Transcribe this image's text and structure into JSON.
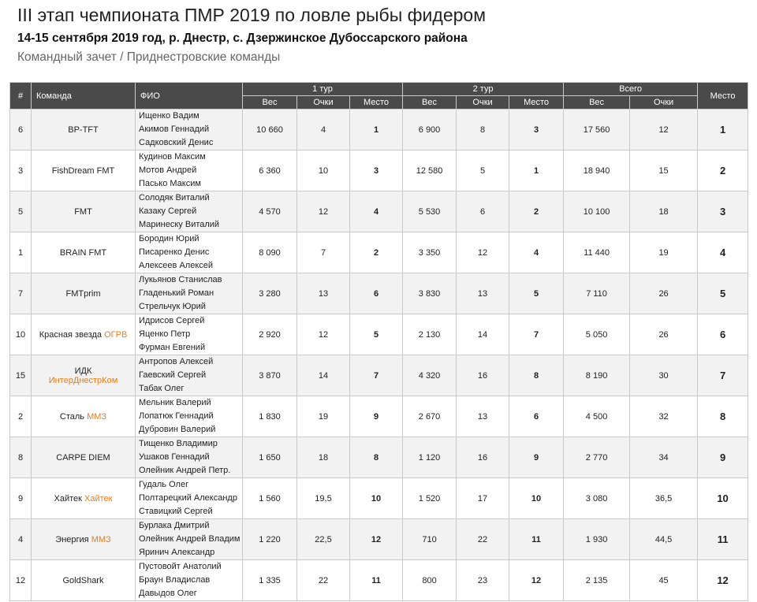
{
  "header": {
    "title": "III этап чемпионата ПМР 2019 по ловле рыбы фидером",
    "subtitle": "14-15 сентября 2019 год, р. Днестр, с. Дзержинское Дубоссарского района",
    "caption": "Командный зачет / Приднестровские команды"
  },
  "columns": {
    "num": "#",
    "team": "Команда",
    "fio": "ФИО",
    "round1": "1 тур",
    "round2": "2 тур",
    "total": "Всего",
    "place": "Место",
    "weight": "Вес",
    "points": "Очки",
    "r_place": "Место"
  },
  "colors": {
    "header_bg": "#4a4a4a",
    "city": "#e67e22",
    "row_alt": "#f2f2f2"
  },
  "rows": [
    {
      "num": "6",
      "team": "BP-TFT",
      "city": "",
      "members": [
        "Ищенко Вадим",
        "Акимов Геннадий",
        "Садковский Денис"
      ],
      "r1_weight": "10 660",
      "r1_points": "4",
      "r1_place": "1",
      "r2_weight": "6 900",
      "r2_points": "8",
      "r2_place": "3",
      "total_weight": "17 560",
      "total_points": "12",
      "place": "1"
    },
    {
      "num": "3",
      "team": "FishDream FMT",
      "city": "",
      "members": [
        "Кудинов Максим",
        "Мотов Андрей",
        "Пасько Максим"
      ],
      "r1_weight": "6 360",
      "r1_points": "10",
      "r1_place": "3",
      "r2_weight": "12 580",
      "r2_points": "5",
      "r2_place": "1",
      "total_weight": "18 940",
      "total_points": "15",
      "place": "2"
    },
    {
      "num": "5",
      "team": "FMT",
      "city": "",
      "members": [
        "Солодяк Виталий",
        "Казаку Сергей",
        "Маринеску Виталий"
      ],
      "r1_weight": "4 570",
      "r1_points": "12",
      "r1_place": "4",
      "r2_weight": "5 530",
      "r2_points": "6",
      "r2_place": "2",
      "total_weight": "10 100",
      "total_points": "18",
      "place": "3"
    },
    {
      "num": "1",
      "team": "BRAIN FMT",
      "city": "",
      "members": [
        "Бородин Юрий",
        "Писаренко Денис",
        "Алексеев Алексей"
      ],
      "r1_weight": "8 090",
      "r1_points": "7",
      "r1_place": "2",
      "r2_weight": "3 350",
      "r2_points": "12",
      "r2_place": "4",
      "total_weight": "11 440",
      "total_points": "19",
      "place": "4"
    },
    {
      "num": "7",
      "team": "FMTprim",
      "city": "",
      "members": [
        "Лукьянов Станислав",
        "Гладенький Роман",
        "Стрельчук Юрий"
      ],
      "r1_weight": "3 280",
      "r1_points": "13",
      "r1_place": "6",
      "r2_weight": "3 830",
      "r2_points": "13",
      "r2_place": "5",
      "total_weight": "7 110",
      "total_points": "26",
      "place": "5"
    },
    {
      "num": "10",
      "team": "Красная звезда",
      "city": "ОГРВ",
      "members": [
        "Идрисов Сергей",
        "Яценко Петр",
        "Фурман Евгений"
      ],
      "r1_weight": "2 920",
      "r1_points": "12",
      "r1_place": "5",
      "r2_weight": "2 130",
      "r2_points": "14",
      "r2_place": "7",
      "total_weight": "5 050",
      "total_points": "26",
      "place": "6"
    },
    {
      "num": "15",
      "team": "ИДК",
      "city": "ИнтерДнестрКом",
      "members": [
        "Антропов Алексей",
        "Гаевский Сергей",
        "Табак Олег"
      ],
      "r1_weight": "3 870",
      "r1_points": "14",
      "r1_place": "7",
      "r2_weight": "4 320",
      "r2_points": "16",
      "r2_place": "8",
      "total_weight": "8 190",
      "total_points": "30",
      "place": "7"
    },
    {
      "num": "2",
      "team": "Сталь",
      "city": "ММЗ",
      "members": [
        "Мельник Валерий",
        "Лопатюк Геннадий",
        "Дубровин Валерий"
      ],
      "r1_weight": "1 830",
      "r1_points": "19",
      "r1_place": "9",
      "r2_weight": "2 670",
      "r2_points": "13",
      "r2_place": "6",
      "total_weight": "4 500",
      "total_points": "32",
      "place": "8"
    },
    {
      "num": "8",
      "team": "CARPE DIEM",
      "city": "",
      "members": [
        "Тищенко Владимир",
        "Ушаков Геннадий",
        "Олейник Андрей Петр."
      ],
      "r1_weight": "1 650",
      "r1_points": "18",
      "r1_place": "8",
      "r2_weight": "1 120",
      "r2_points": "16",
      "r2_place": "9",
      "total_weight": "2 770",
      "total_points": "34",
      "place": "9"
    },
    {
      "num": "9",
      "team": "Хайтек",
      "city": "Хайтек",
      "members": [
        "Гудаль Олег",
        "Полтарецкий Александр",
        "Ставицкий Сергей"
      ],
      "r1_weight": "1 560",
      "r1_points": "19,5",
      "r1_place": "10",
      "r2_weight": "1 520",
      "r2_points": "17",
      "r2_place": "10",
      "total_weight": "3 080",
      "total_points": "36,5",
      "place": "10"
    },
    {
      "num": "4",
      "team": "Энергия",
      "city": "ММЗ",
      "members": [
        "Бурлака Дмитрий",
        "Олейник Андрей Владим",
        "Яринич Александр"
      ],
      "r1_weight": "1 220",
      "r1_points": "22,5",
      "r1_place": "12",
      "r2_weight": "710",
      "r2_points": "22",
      "r2_place": "11",
      "total_weight": "1 930",
      "total_points": "44,5",
      "place": "11"
    },
    {
      "num": "12",
      "team": "GoldShark",
      "city": "",
      "members": [
        "Пустовойт Анатолий",
        "Браун Владислав",
        "Давыдов Олег"
      ],
      "r1_weight": "1 335",
      "r1_points": "22",
      "r1_place": "11",
      "r2_weight": "800",
      "r2_points": "23",
      "r2_place": "12",
      "total_weight": "2 135",
      "total_points": "45",
      "place": "12"
    }
  ]
}
